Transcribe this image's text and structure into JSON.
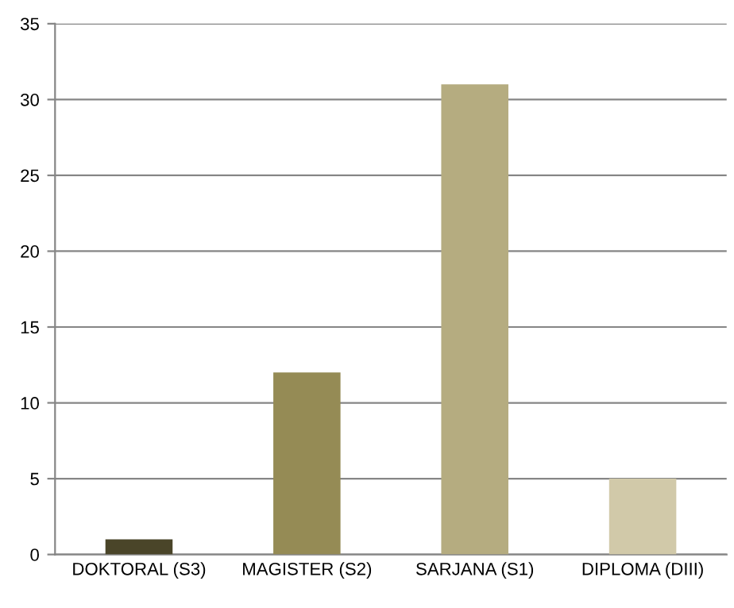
{
  "chart_data": {
    "type": "bar",
    "categories": [
      "DOKTORAL (S3)",
      "MAGISTER (S2)",
      "SARJANA (S1)",
      "DIPLOMA (DIII)"
    ],
    "values": [
      1,
      12,
      31,
      5
    ],
    "colors": [
      "#4a4529",
      "#958b55",
      "#b5ac80",
      "#d1c9a9"
    ],
    "ylim": [
      0,
      35
    ],
    "yticks": [
      0,
      5,
      10,
      15,
      20,
      25,
      30,
      35
    ],
    "grid": "y"
  }
}
